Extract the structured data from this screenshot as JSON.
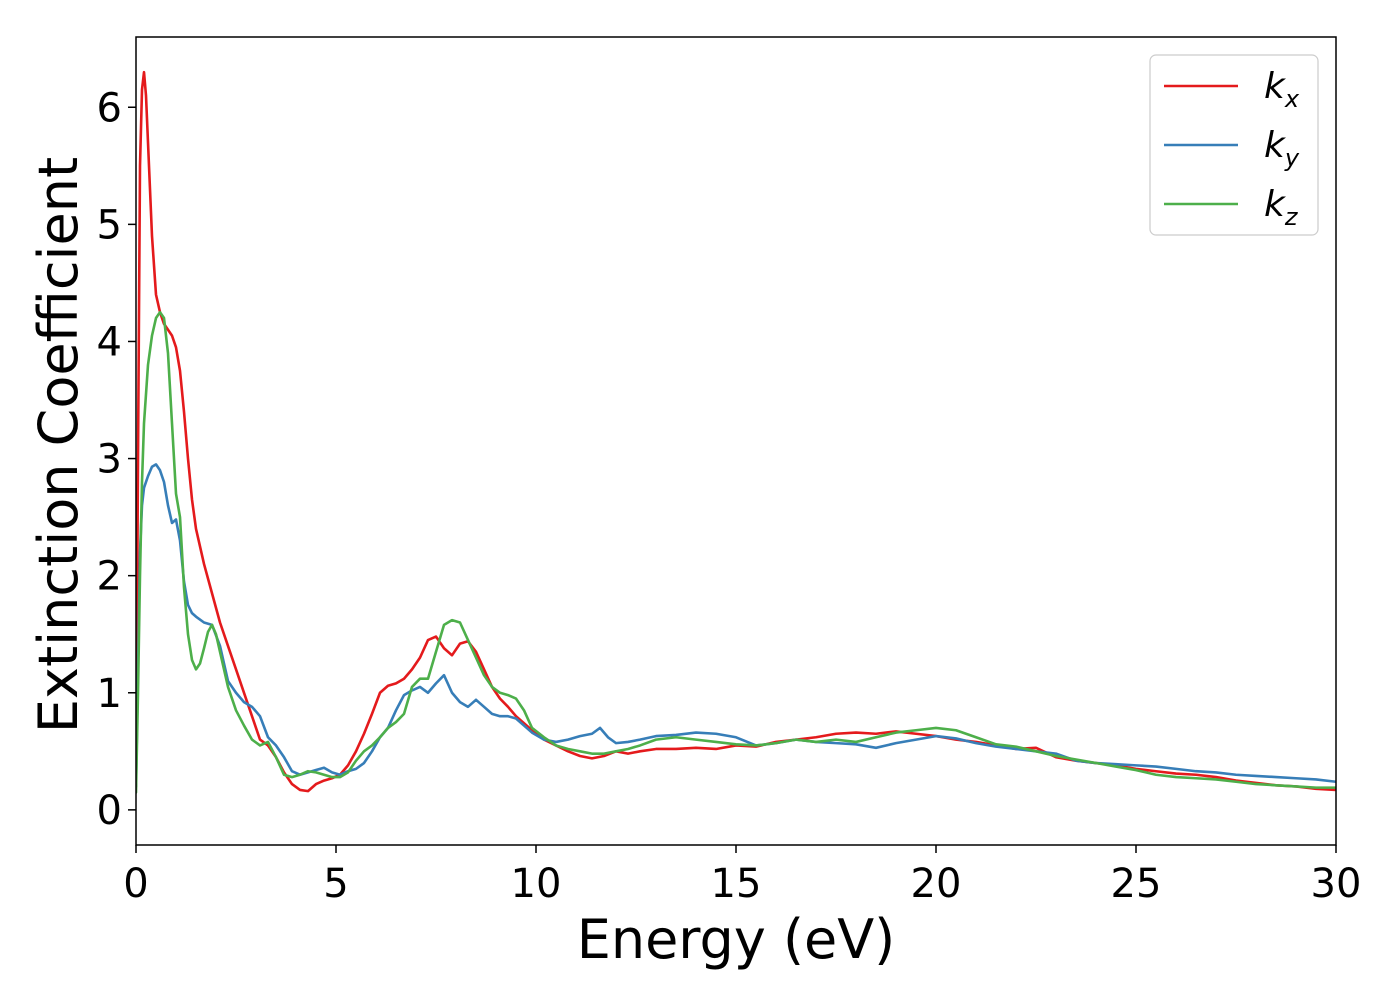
{
  "chart_data": {
    "type": "line",
    "xlabel": "Energy (eV)",
    "ylabel": "Extinction Coefficient",
    "xlim": [
      0,
      30
    ],
    "ylim": [
      -0.3,
      6.6
    ],
    "xticks": [
      "0",
      "5",
      "10",
      "15",
      "20",
      "25",
      "30"
    ],
    "yticks": [
      "0",
      "1",
      "2",
      "3",
      "4",
      "5",
      "6"
    ],
    "grid": false,
    "legend_position": "top-right",
    "series": [
      {
        "name": "k",
        "name_subscript": "x",
        "color": "#e41a1c",
        "x": [
          0,
          0.05,
          0.1,
          0.15,
          0.2,
          0.25,
          0.3,
          0.4,
          0.5,
          0.6,
          0.7,
          0.8,
          0.9,
          1.0,
          1.1,
          1.2,
          1.3,
          1.4,
          1.5,
          1.7,
          1.9,
          2.1,
          2.3,
          2.5,
          2.7,
          2.9,
          3.1,
          3.3,
          3.5,
          3.7,
          3.9,
          4.1,
          4.3,
          4.5,
          4.7,
          4.9,
          5.1,
          5.3,
          5.5,
          5.7,
          5.9,
          6.1,
          6.3,
          6.5,
          6.7,
          6.9,
          7.1,
          7.3,
          7.5,
          7.7,
          7.9,
          8.1,
          8.3,
          8.5,
          8.7,
          8.9,
          9.1,
          9.3,
          9.5,
          9.7,
          9.9,
          10.2,
          10.5,
          10.8,
          11.1,
          11.4,
          11.7,
          12.0,
          12.3,
          12.6,
          13.0,
          13.5,
          14.0,
          14.5,
          15.0,
          15.5,
          16.0,
          16.5,
          17.0,
          17.5,
          18.0,
          18.5,
          19.0,
          19.5,
          20.0,
          20.5,
          21.0,
          21.5,
          22.0,
          22.5,
          23.0,
          23.5,
          24.0,
          24.5,
          25.0,
          25.5,
          26.0,
          26.5,
          27.0,
          27.5,
          28.0,
          28.5,
          29.0,
          29.5,
          30.0
        ],
        "y": [
          0.2,
          3.0,
          5.5,
          6.15,
          6.3,
          6.1,
          5.7,
          4.9,
          4.4,
          4.25,
          4.15,
          4.1,
          4.05,
          3.95,
          3.75,
          3.4,
          3.0,
          2.65,
          2.4,
          2.1,
          1.85,
          1.6,
          1.4,
          1.2,
          1.0,
          0.8,
          0.6,
          0.55,
          0.45,
          0.32,
          0.22,
          0.17,
          0.16,
          0.22,
          0.25,
          0.27,
          0.3,
          0.38,
          0.5,
          0.65,
          0.82,
          1.0,
          1.06,
          1.08,
          1.12,
          1.2,
          1.3,
          1.45,
          1.48,
          1.38,
          1.32,
          1.42,
          1.44,
          1.35,
          1.2,
          1.05,
          0.95,
          0.88,
          0.8,
          0.74,
          0.68,
          0.6,
          0.55,
          0.5,
          0.46,
          0.44,
          0.46,
          0.5,
          0.48,
          0.5,
          0.52,
          0.52,
          0.53,
          0.52,
          0.55,
          0.54,
          0.58,
          0.6,
          0.62,
          0.65,
          0.66,
          0.65,
          0.67,
          0.65,
          0.63,
          0.6,
          0.58,
          0.55,
          0.52,
          0.53,
          0.45,
          0.42,
          0.4,
          0.38,
          0.35,
          0.33,
          0.31,
          0.3,
          0.28,
          0.25,
          0.23,
          0.21,
          0.2,
          0.18,
          0.17
        ]
      },
      {
        "name": "k",
        "name_subscript": "y",
        "color": "#377eb8",
        "x": [
          0,
          0.05,
          0.1,
          0.15,
          0.2,
          0.3,
          0.4,
          0.5,
          0.6,
          0.7,
          0.8,
          0.9,
          1.0,
          1.1,
          1.2,
          1.3,
          1.4,
          1.5,
          1.7,
          1.9,
          2.1,
          2.3,
          2.5,
          2.7,
          2.9,
          3.1,
          3.3,
          3.5,
          3.7,
          3.9,
          4.1,
          4.3,
          4.5,
          4.7,
          4.9,
          5.1,
          5.3,
          5.5,
          5.7,
          5.9,
          6.1,
          6.3,
          6.5,
          6.7,
          6.9,
          7.1,
          7.3,
          7.5,
          7.7,
          7.9,
          8.1,
          8.3,
          8.5,
          8.7,
          8.9,
          9.1,
          9.3,
          9.5,
          9.7,
          9.9,
          10.2,
          10.5,
          10.8,
          11.1,
          11.4,
          11.6,
          11.8,
          12.0,
          12.3,
          12.6,
          13.0,
          13.5,
          14.0,
          14.5,
          15.0,
          15.5,
          16.0,
          16.5,
          17.0,
          17.5,
          18.0,
          18.5,
          19.0,
          19.5,
          20.0,
          20.5,
          21.0,
          21.5,
          22.0,
          22.5,
          23.0,
          23.5,
          24.0,
          24.5,
          25.0,
          25.5,
          26.0,
          26.5,
          27.0,
          27.5,
          28.0,
          28.5,
          29.0,
          29.5,
          30.0
        ],
        "y": [
          0.2,
          1.2,
          2.2,
          2.6,
          2.75,
          2.85,
          2.93,
          2.95,
          2.9,
          2.8,
          2.6,
          2.45,
          2.48,
          2.3,
          1.95,
          1.75,
          1.68,
          1.65,
          1.6,
          1.58,
          1.4,
          1.1,
          1.0,
          0.92,
          0.88,
          0.8,
          0.62,
          0.55,
          0.45,
          0.33,
          0.3,
          0.32,
          0.34,
          0.36,
          0.32,
          0.3,
          0.33,
          0.35,
          0.4,
          0.5,
          0.62,
          0.7,
          0.85,
          0.98,
          1.02,
          1.05,
          1.0,
          1.08,
          1.15,
          1.0,
          0.92,
          0.88,
          0.94,
          0.88,
          0.82,
          0.8,
          0.8,
          0.78,
          0.72,
          0.66,
          0.6,
          0.58,
          0.6,
          0.63,
          0.65,
          0.7,
          0.62,
          0.57,
          0.58,
          0.6,
          0.63,
          0.64,
          0.66,
          0.65,
          0.62,
          0.55,
          0.57,
          0.6,
          0.58,
          0.57,
          0.56,
          0.53,
          0.57,
          0.6,
          0.63,
          0.61,
          0.57,
          0.54,
          0.52,
          0.5,
          0.48,
          0.42,
          0.4,
          0.39,
          0.38,
          0.37,
          0.35,
          0.33,
          0.32,
          0.3,
          0.29,
          0.28,
          0.27,
          0.26,
          0.24
        ]
      },
      {
        "name": "k",
        "name_subscript": "z",
        "color": "#4daf4a",
        "x": [
          0,
          0.05,
          0.1,
          0.15,
          0.2,
          0.3,
          0.4,
          0.5,
          0.6,
          0.7,
          0.8,
          0.9,
          1.0,
          1.1,
          1.2,
          1.3,
          1.4,
          1.5,
          1.6,
          1.7,
          1.8,
          1.9,
          2.0,
          2.1,
          2.3,
          2.5,
          2.7,
          2.9,
          3.1,
          3.3,
          3.5,
          3.7,
          3.9,
          4.1,
          4.3,
          4.5,
          4.7,
          4.9,
          5.1,
          5.3,
          5.5,
          5.7,
          5.9,
          6.1,
          6.3,
          6.5,
          6.7,
          6.9,
          7.1,
          7.3,
          7.5,
          7.7,
          7.9,
          8.1,
          8.3,
          8.5,
          8.7,
          8.9,
          9.1,
          9.3,
          9.5,
          9.7,
          9.9,
          10.2,
          10.5,
          10.8,
          11.1,
          11.4,
          11.7,
          12.0,
          12.3,
          12.6,
          13.0,
          13.5,
          14.0,
          14.5,
          15.0,
          15.5,
          16.0,
          16.5,
          17.0,
          17.5,
          18.0,
          18.5,
          19.0,
          19.5,
          20.0,
          20.5,
          21.0,
          21.5,
          22.0,
          22.5,
          23.0,
          23.5,
          24.0,
          24.5,
          25.0,
          25.5,
          26.0,
          26.5,
          27.0,
          27.5,
          28.0,
          28.5,
          29.0,
          29.5,
          30.0
        ],
        "y": [
          0.15,
          1.0,
          2.0,
          2.8,
          3.3,
          3.8,
          4.05,
          4.2,
          4.25,
          4.2,
          3.9,
          3.3,
          2.7,
          2.5,
          1.9,
          1.5,
          1.28,
          1.2,
          1.25,
          1.38,
          1.52,
          1.58,
          1.5,
          1.35,
          1.05,
          0.85,
          0.72,
          0.6,
          0.55,
          0.58,
          0.45,
          0.3,
          0.28,
          0.3,
          0.33,
          0.32,
          0.3,
          0.28,
          0.28,
          0.32,
          0.42,
          0.5,
          0.55,
          0.62,
          0.7,
          0.75,
          0.82,
          1.05,
          1.12,
          1.12,
          1.35,
          1.58,
          1.62,
          1.6,
          1.45,
          1.3,
          1.15,
          1.05,
          1.0,
          0.98,
          0.95,
          0.85,
          0.7,
          0.62,
          0.55,
          0.52,
          0.5,
          0.48,
          0.48,
          0.5,
          0.52,
          0.55,
          0.6,
          0.62,
          0.6,
          0.58,
          0.56,
          0.55,
          0.57,
          0.6,
          0.58,
          0.6,
          0.58,
          0.62,
          0.66,
          0.68,
          0.7,
          0.68,
          0.62,
          0.56,
          0.54,
          0.5,
          0.46,
          0.43,
          0.4,
          0.37,
          0.34,
          0.3,
          0.28,
          0.27,
          0.26,
          0.24,
          0.22,
          0.21,
          0.2,
          0.19,
          0.19
        ]
      }
    ]
  }
}
